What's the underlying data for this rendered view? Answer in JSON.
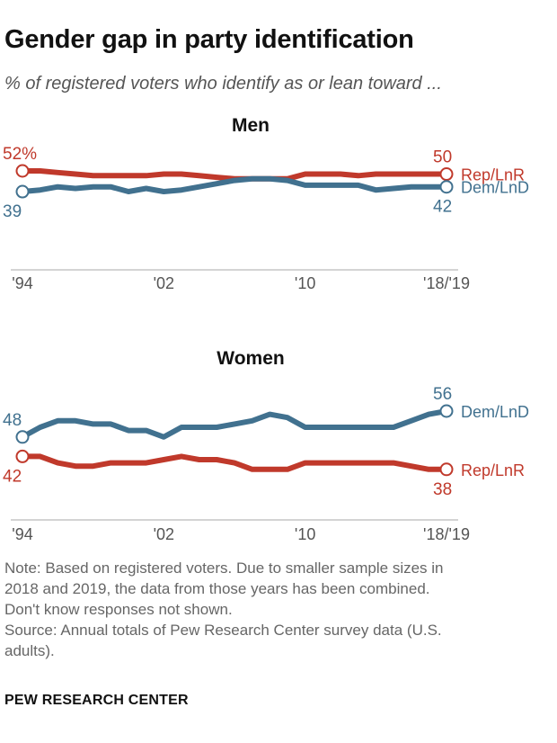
{
  "title": "Gender gap in party identification",
  "subtitle": "% of registered voters who identify as or lean toward ...",
  "colors": {
    "rep": "#c0392b",
    "dem": "#41718f"
  },
  "chart_data": [
    {
      "type": "line",
      "title": "Men",
      "x": [
        "1994",
        "1995",
        "1996",
        "1997",
        "1998",
        "1999",
        "2000",
        "2001",
        "2002",
        "2003",
        "2004",
        "2005",
        "2006",
        "2007",
        "2008",
        "2009",
        "2010",
        "2011",
        "2012",
        "2013",
        "2014",
        "2015",
        "2016",
        "2017",
        "2018/2019"
      ],
      "x_tick_labels": [
        "'94",
        "'02",
        "'10",
        "'18/'19"
      ],
      "series": [
        {
          "name": "Rep/LnR",
          "key": "rep",
          "start_label": "52%",
          "end_label": "50",
          "values": [
            52,
            52,
            51,
            50,
            49,
            49,
            49,
            49,
            50,
            50,
            49,
            48,
            47,
            47,
            47,
            47,
            50,
            50,
            50,
            49,
            50,
            50,
            50,
            50,
            50
          ]
        },
        {
          "name": "Dem/LnD",
          "key": "dem",
          "start_label": "39",
          "end_label": "42",
          "values": [
            39,
            40,
            42,
            41,
            42,
            42,
            39,
            41,
            39,
            40,
            42,
            44,
            46,
            47,
            47,
            46,
            43,
            43,
            43,
            43,
            40,
            41,
            42,
            42,
            42
          ]
        }
      ]
    },
    {
      "type": "line",
      "title": "Women",
      "x": [
        "1994",
        "1995",
        "1996",
        "1997",
        "1998",
        "1999",
        "2000",
        "2001",
        "2002",
        "2003",
        "2004",
        "2005",
        "2006",
        "2007",
        "2008",
        "2009",
        "2010",
        "2011",
        "2012",
        "2013",
        "2014",
        "2015",
        "2016",
        "2017",
        "2018/2019"
      ],
      "x_tick_labels": [
        "'94",
        "'02",
        "'10",
        "'18/'19"
      ],
      "series": [
        {
          "name": "Dem/LnD",
          "key": "dem",
          "start_label": "48",
          "end_label": "56",
          "values": [
            48,
            51,
            53,
            53,
            52,
            52,
            50,
            50,
            48,
            51,
            51,
            51,
            52,
            53,
            55,
            54,
            51,
            51,
            51,
            51,
            51,
            51,
            53,
            55,
            56
          ]
        },
        {
          "name": "Rep/LnR",
          "key": "rep",
          "start_label": "42",
          "end_label": "38",
          "values": [
            42,
            42,
            40,
            39,
            39,
            40,
            40,
            40,
            41,
            42,
            41,
            41,
            40,
            38,
            38,
            38,
            40,
            40,
            40,
            40,
            40,
            40,
            39,
            38,
            38
          ]
        }
      ]
    }
  ],
  "note_lines": [
    "Note: Based on registered voters. Due to smaller sample sizes in",
    "2018 and 2019, the data from those years has been combined.",
    "Don't know responses not shown.",
    "Source: Annual totals of Pew Research Center survey data (U.S.",
    "adults)."
  ],
  "brand": "PEW RESEARCH CENTER"
}
